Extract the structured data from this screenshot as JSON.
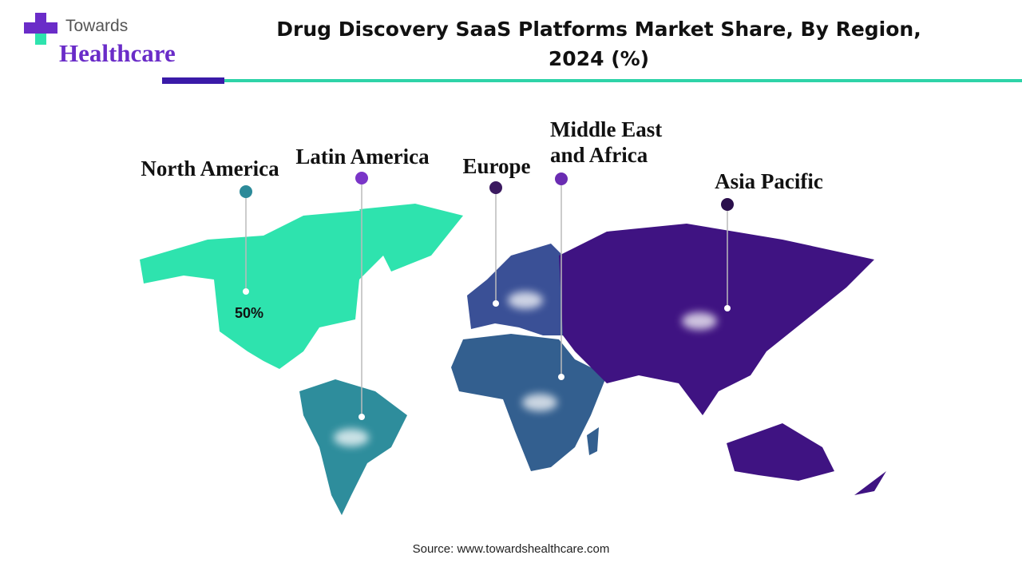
{
  "header": {
    "logo_top": "Towards",
    "logo_bottom": "Healthcare",
    "title_line1": "Drug Discovery SaaS Platforms Market Share, By Region,",
    "title_line2": "2024 (%)"
  },
  "regions": [
    {
      "label": "North America",
      "color": "#2ee3ae",
      "marker_color": "#2c8a99",
      "value_label": "50%"
    },
    {
      "label": "Latin America",
      "color": "#2e8d9c",
      "marker_color": "#7a35c8"
    },
    {
      "label": "Europe",
      "color": "#3a5096",
      "marker_color": "#3b1a60"
    },
    {
      "label_line1": "Middle East",
      "label_line2": "and Africa",
      "color": "#335f8f",
      "marker_color": "#6a2cb2"
    },
    {
      "label": "Asia Pacific",
      "color": "#3f1382",
      "marker_color": "#2a0f4c"
    }
  ],
  "source": "Source: www.towardshealthcare.com"
}
